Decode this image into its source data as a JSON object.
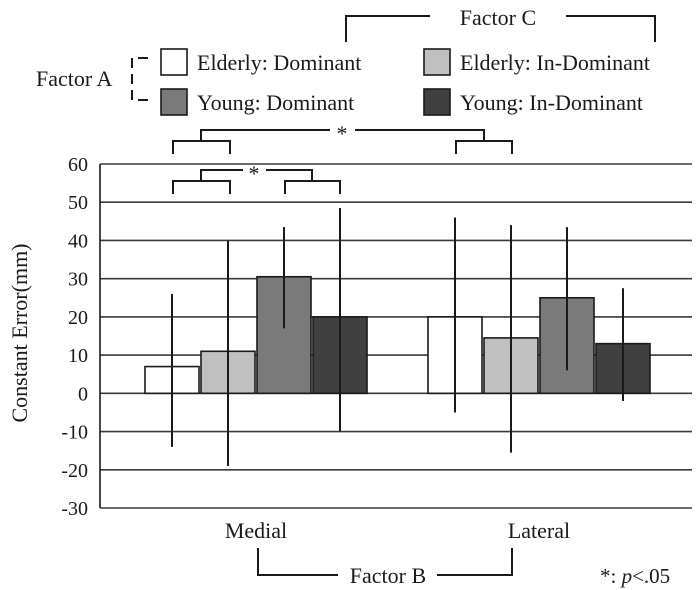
{
  "chart_data": {
    "type": "bar",
    "ylabel": "Constant Error(mm)",
    "ylim": [
      -30,
      60
    ],
    "yticks": [
      -30,
      -20,
      -10,
      0,
      10,
      20,
      30,
      40,
      50,
      60
    ],
    "grid": true,
    "categories": [
      "Medial",
      "Lateral"
    ],
    "series": [
      {
        "name": "Elderly: Dominant",
        "color": "#ffffff",
        "values": [
          7,
          20
        ],
        "error_low": [
          -14,
          -5
        ],
        "error_high": [
          26,
          46
        ]
      },
      {
        "name": "Elderly: In-Dominant",
        "color": "#c0c0c0",
        "values": [
          11,
          14.5
        ],
        "error_low": [
          -19,
          -15.5
        ],
        "error_high": [
          40,
          44
        ]
      },
      {
        "name": "Young: Dominant",
        "color": "#7a7a7a",
        "values": [
          30.5,
          25
        ],
        "error_low": [
          17,
          6
        ],
        "error_high": [
          43.5,
          43.5
        ]
      },
      {
        "name": "Young: In-Dominant",
        "color": "#404040",
        "values": [
          20,
          13
        ],
        "error_low": [
          -10,
          -2
        ],
        "error_high": [
          48.5,
          27.5
        ]
      }
    ],
    "factor_labels": {
      "factor_a": "Factor A",
      "factor_b": "Factor B",
      "factor_c": "Factor C"
    },
    "significance_markers": [
      "*",
      "*"
    ],
    "note": "*: p<.05",
    "note_prefix": "*: ",
    "note_p": "p",
    "note_suffix": "<.05"
  }
}
